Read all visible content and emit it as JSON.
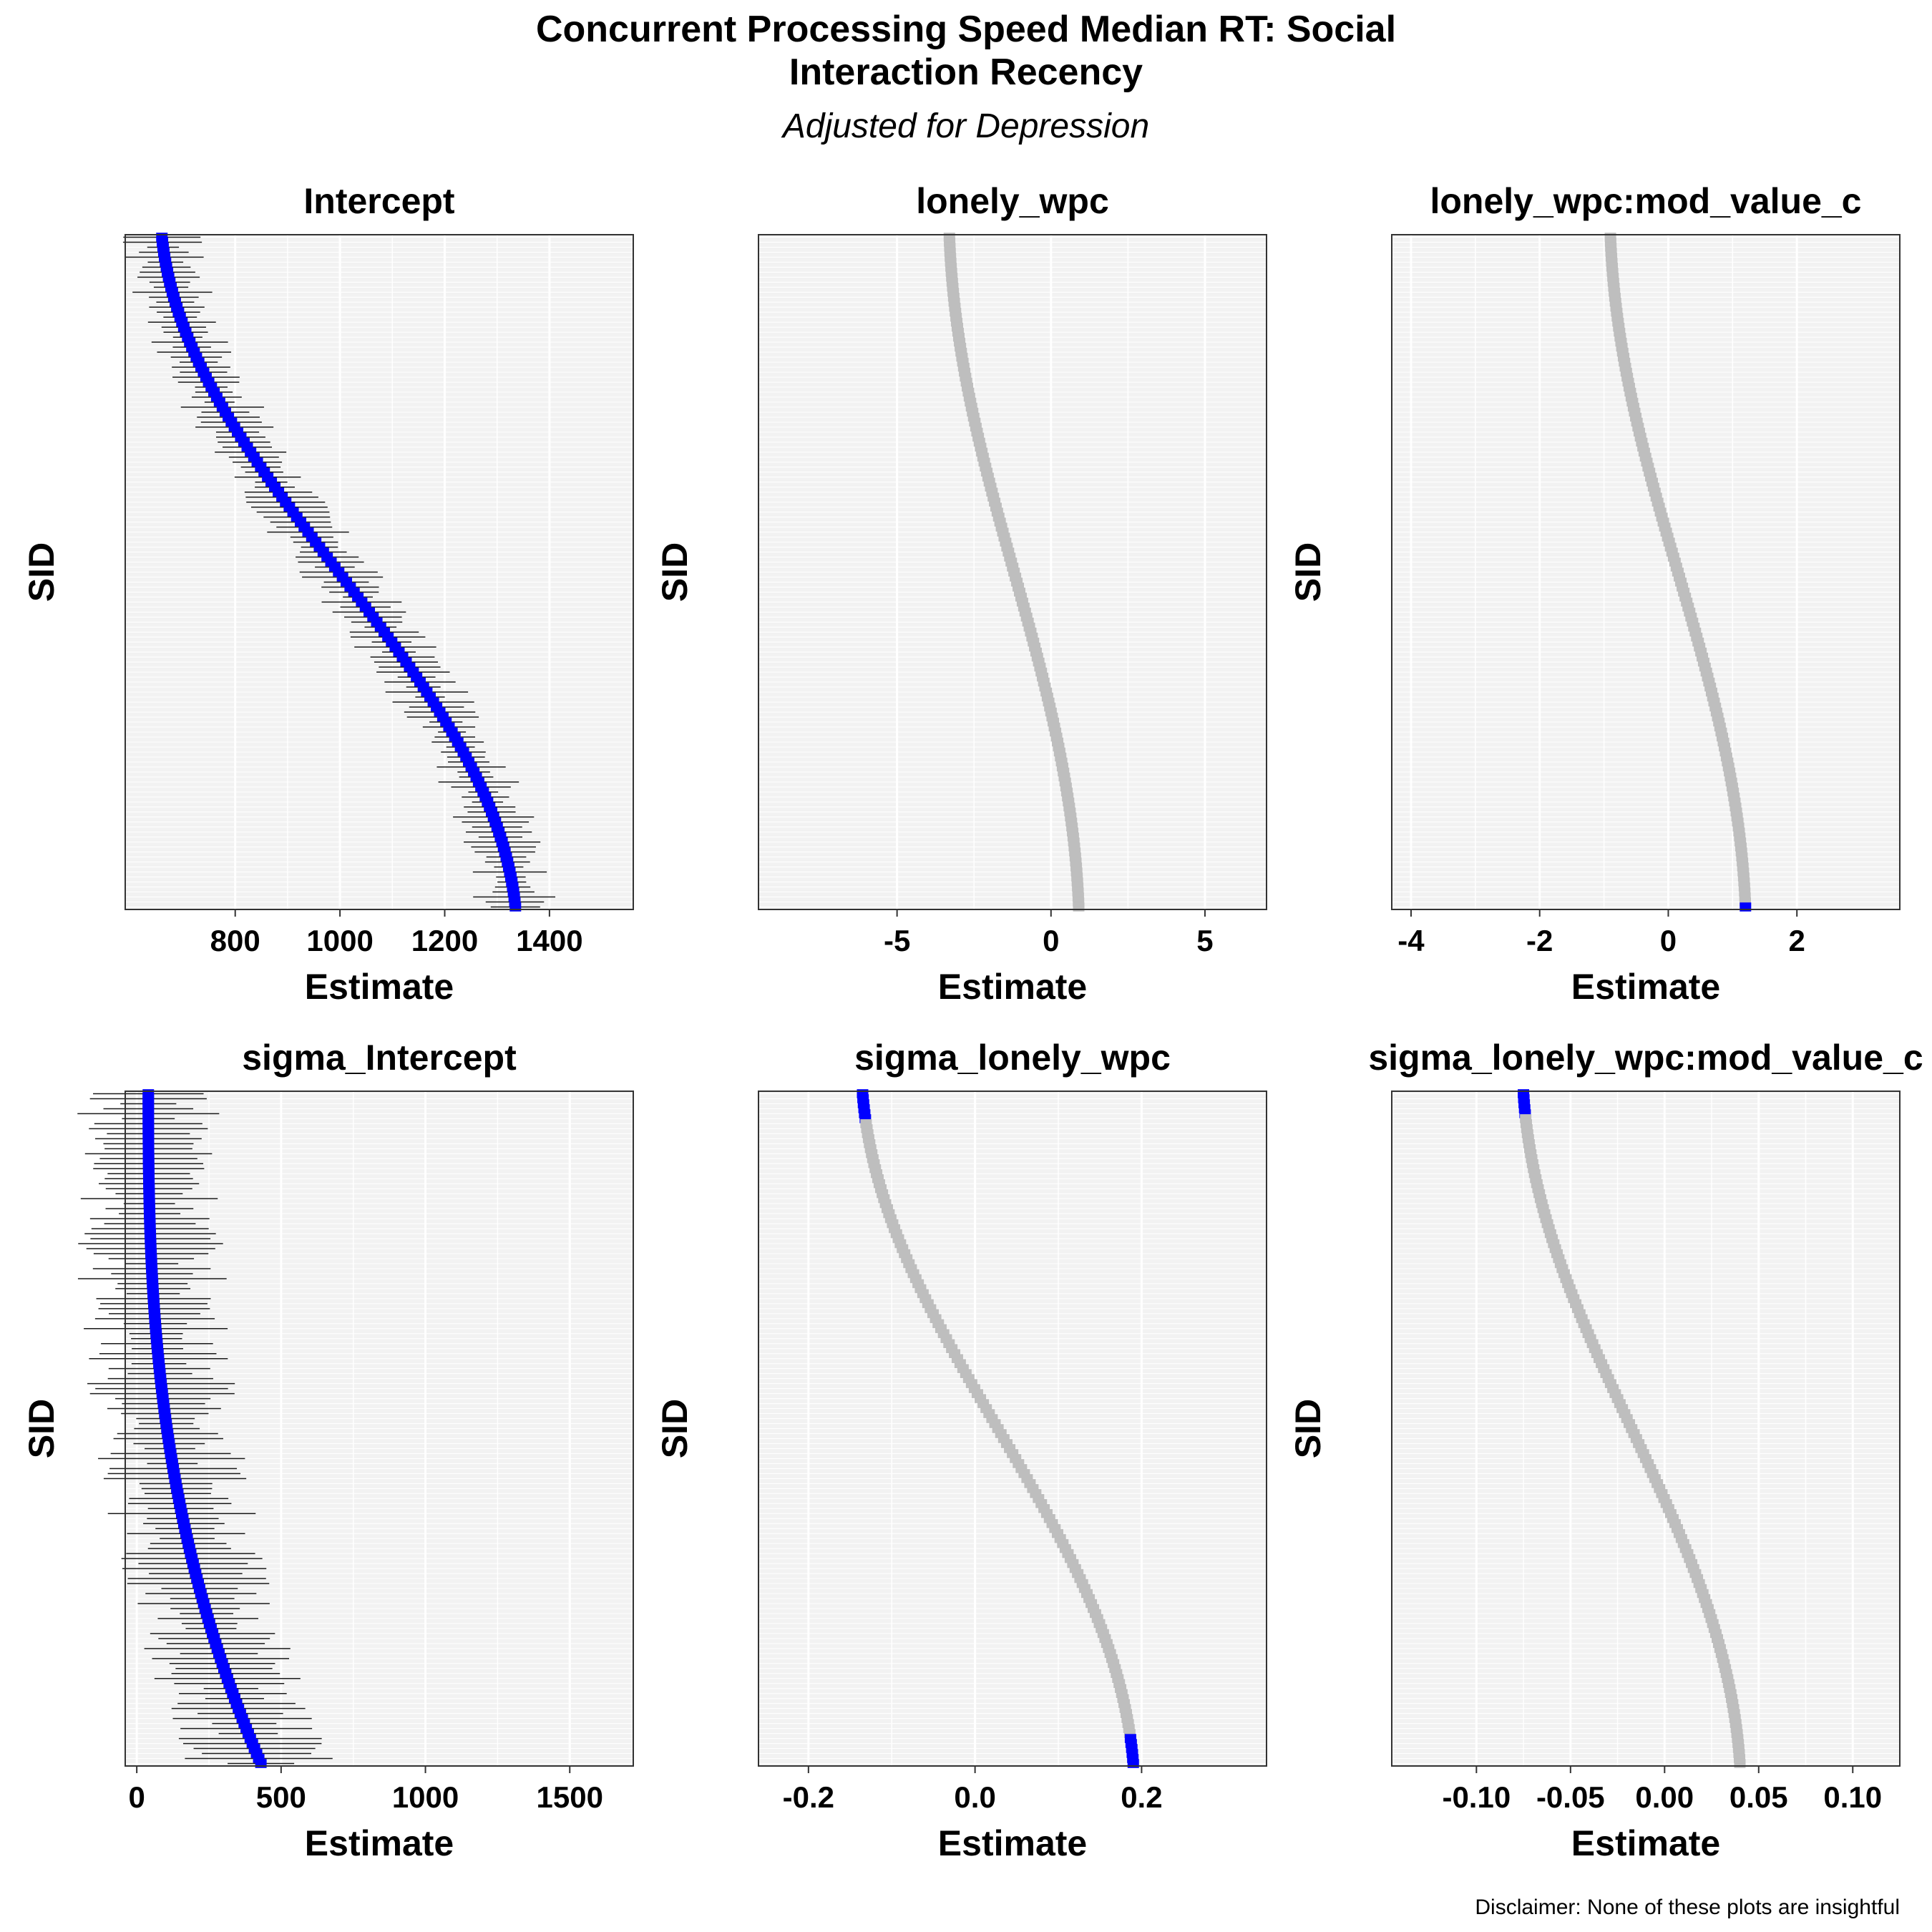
{
  "figure": {
    "title_line1": "Concurrent Processing Speed Median RT: Social",
    "title_line2": "Interaction Recency",
    "subtitle": "Adjusted for Depression",
    "disclaimer": "Disclaimer: None of these plots are insightful"
  },
  "colors": {
    "significant": "#0000ff",
    "nonsignificant": "#bebebe",
    "interval": "#1a1a1a",
    "interval_nonsig": "#a0a0a0",
    "panel_bg": "#f2f2f2",
    "grid": "#ffffff"
  },
  "chart_data": [
    {
      "type": "scatter",
      "title": "Intercept",
      "xlabel": "Estimate",
      "ylabel": "SID",
      "xlim": [
        590,
        1560
      ],
      "xticks": [
        800,
        1000,
        1200,
        1400
      ],
      "tick_labels": [
        "800",
        "1000",
        "1200",
        "1400"
      ],
      "estimate_range": [
        660,
        1335
      ],
      "n_points": 135,
      "significant_all": true,
      "sig_top": 0,
      "sig_bottom": 0
    },
    {
      "type": "scatter",
      "title": "lonely_wpc",
      "xlabel": "Estimate",
      "ylabel": "SID",
      "xlim": [
        -9.5,
        7
      ],
      "xticks": [
        -5,
        0,
        5
      ],
      "tick_labels": [
        "-5",
        "0",
        "5"
      ],
      "estimate_range": [
        -3.3,
        0.9
      ],
      "n_points": 135,
      "significant_all": false,
      "sig_top": 0,
      "sig_bottom": 0
    },
    {
      "type": "scatter",
      "title": "lonely_wpc:mod_value_c",
      "xlabel": "Estimate",
      "ylabel": "SID",
      "xlim": [
        -4.3,
        3.6
      ],
      "xticks": [
        -4,
        -2,
        0,
        2
      ],
      "tick_labels": [
        "-4",
        "-2",
        "0",
        "2"
      ],
      "estimate_range": [
        -0.9,
        1.2
      ],
      "n_points": 135,
      "significant_all": false,
      "sig_top": 0,
      "sig_bottom": 1
    },
    {
      "type": "scatter",
      "title": "sigma_Intercept",
      "xlabel": "Estimate",
      "ylabel": "SID",
      "xlim": [
        -40,
        1720
      ],
      "xticks": [
        0,
        500,
        1000,
        1500
      ],
      "tick_labels": [
        "0",
        "500",
        "1000",
        "1500"
      ],
      "estimate_range": [
        40,
        430
      ],
      "n_points": 135,
      "significant_all": true,
      "sig_top": 0,
      "sig_bottom": 0
    },
    {
      "type": "scatter",
      "title": "sigma_lonely_wpc",
      "xlabel": "Estimate",
      "ylabel": "SID",
      "xlim": [
        -0.26,
        0.35
      ],
      "xticks": [
        -0.2,
        0.0,
        0.2
      ],
      "tick_labels": [
        "-0.2",
        "0.0",
        "0.2"
      ],
      "estimate_range": [
        -0.135,
        0.19
      ],
      "n_points": 135,
      "significant_all": false,
      "sig_top": 6,
      "sig_bottom": 6
    },
    {
      "type": "scatter",
      "title": "sigma_lonely_wpc:mod_value_c",
      "xlabel": "Estimate",
      "ylabel": "SID",
      "xlim": [
        -0.145,
        0.125
      ],
      "xticks": [
        -0.1,
        -0.05,
        0.0,
        0.05,
        0.1
      ],
      "tick_labels": [
        "-0.10",
        "-0.05",
        "0.00",
        "0.05",
        "0.10"
      ],
      "estimate_range": [
        -0.075,
        0.04
      ],
      "n_points": 135,
      "significant_all": false,
      "sig_top": 5,
      "sig_bottom": 0
    }
  ]
}
